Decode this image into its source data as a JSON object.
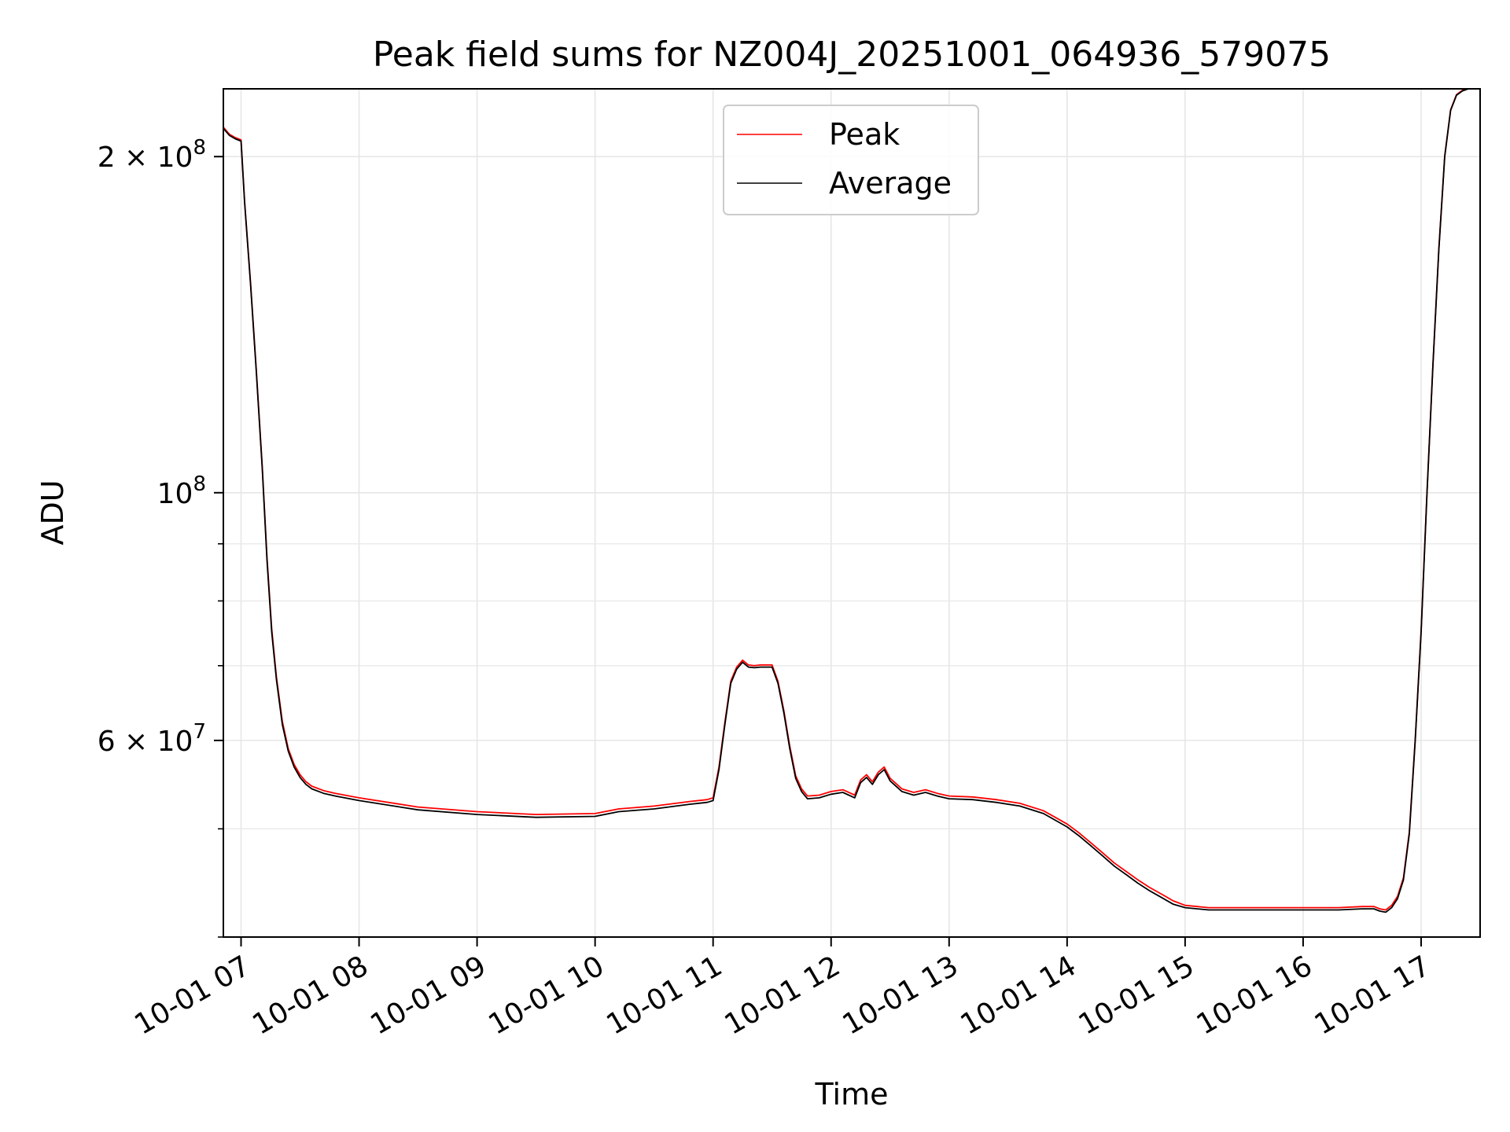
{
  "chart_data": {
    "type": "line",
    "title": "Peak field sums for NZ004J_20251001_064936_579075",
    "xlabel": "Time",
    "ylabel": "ADU",
    "y_scale": "log",
    "xlim_hours": [
      6.85,
      17.5
    ],
    "ylim": [
      40000000,
      230000000
    ],
    "x_ticks": [
      {
        "hour": 7,
        "label": "10-01 07"
      },
      {
        "hour": 8,
        "label": "10-01 08"
      },
      {
        "hour": 9,
        "label": "10-01 09"
      },
      {
        "hour": 10,
        "label": "10-01 10"
      },
      {
        "hour": 11,
        "label": "10-01 11"
      },
      {
        "hour": 12,
        "label": "10-01 12"
      },
      {
        "hour": 13,
        "label": "10-01 13"
      },
      {
        "hour": 14,
        "label": "10-01 14"
      },
      {
        "hour": 15,
        "label": "10-01 15"
      },
      {
        "hour": 16,
        "label": "10-01 16"
      },
      {
        "hour": 17,
        "label": "10-01 17"
      }
    ],
    "y_major_ticks": [
      {
        "value": 100000000,
        "base": "10",
        "exp": "8"
      },
      {
        "value": 200000000,
        "base": "2 × 10",
        "exp": "8"
      },
      {
        "value": 60000000,
        "base": "6 × 10",
        "exp": "7"
      }
    ],
    "y_minor_ticks": [
      40000000,
      50000000,
      70000000,
      80000000,
      90000000
    ],
    "legend": {
      "position": "upper center",
      "entries": [
        {
          "name": "Peak",
          "color": "#ff0000"
        },
        {
          "name": "Average",
          "color": "#000000"
        }
      ]
    },
    "series": [
      {
        "name": "Average",
        "color": "#000000",
        "x_hours": [
          6.85,
          6.9,
          6.95,
          7.0,
          7.03,
          7.08,
          7.13,
          7.18,
          7.22,
          7.26,
          7.3,
          7.35,
          7.4,
          7.45,
          7.5,
          7.55,
          7.6,
          7.7,
          7.8,
          8.0,
          8.5,
          9.0,
          9.5,
          10.0,
          10.2,
          10.5,
          10.8,
          10.95,
          11.0,
          11.05,
          11.1,
          11.15,
          11.2,
          11.25,
          11.3,
          11.35,
          11.4,
          11.5,
          11.55,
          11.6,
          11.65,
          11.7,
          11.75,
          11.8,
          11.9,
          12.0,
          12.1,
          12.2,
          12.25,
          12.3,
          12.35,
          12.4,
          12.45,
          12.5,
          12.6,
          12.7,
          12.8,
          12.9,
          13.0,
          13.2,
          13.4,
          13.6,
          13.8,
          14.0,
          14.1,
          14.2,
          14.3,
          14.4,
          14.5,
          14.6,
          14.7,
          14.8,
          14.9,
          15.0,
          15.2,
          15.5,
          15.8,
          16.0,
          16.3,
          16.5,
          16.6,
          16.65,
          16.7,
          16.75,
          16.8,
          16.85,
          16.9,
          16.95,
          17.0,
          17.05,
          17.1,
          17.15,
          17.2,
          17.25,
          17.3,
          17.35,
          17.4,
          17.45,
          17.5
        ],
        "values": [
          212000000,
          209000000,
          207500000,
          206500000,
          182000000,
          154000000,
          128000000,
          105000000,
          87000000,
          75000000,
          68000000,
          62000000,
          58700000,
          56800000,
          55600000,
          54800000,
          54300000,
          53800000,
          53500000,
          53000000,
          52000000,
          51500000,
          51200000,
          51300000,
          51800000,
          52100000,
          52600000,
          52800000,
          53000000,
          56500000,
          62000000,
          67500000,
          69500000,
          70500000,
          69800000,
          69700000,
          69800000,
          69800000,
          67500000,
          63500000,
          59000000,
          55500000,
          54000000,
          53200000,
          53300000,
          53700000,
          53900000,
          53300000,
          55000000,
          55600000,
          54800000,
          55900000,
          56500000,
          55200000,
          54000000,
          53600000,
          53900000,
          53500000,
          53200000,
          53100000,
          52800000,
          52400000,
          51600000,
          50200000,
          49300000,
          48300000,
          47300000,
          46300000,
          45500000,
          44700000,
          44000000,
          43400000,
          42800000,
          42500000,
          42300000,
          42300000,
          42300000,
          42300000,
          42300000,
          42400000,
          42400000,
          42200000,
          42100000,
          42500000,
          43300000,
          45000000,
          49500000,
          60000000,
          75000000,
          100000000,
          130000000,
          165000000,
          200000000,
          220000000,
          227000000,
          229000000,
          230000000,
          230000000,
          230000000
        ]
      },
      {
        "name": "Peak",
        "color": "#ff0000",
        "x_hours": [
          6.85,
          6.9,
          6.95,
          7.0,
          7.03,
          7.08,
          7.13,
          7.18,
          7.22,
          7.26,
          7.3,
          7.35,
          7.4,
          7.45,
          7.5,
          7.55,
          7.6,
          7.7,
          7.8,
          8.0,
          8.5,
          9.0,
          9.5,
          10.0,
          10.2,
          10.5,
          10.8,
          10.95,
          11.0,
          11.05,
          11.1,
          11.15,
          11.2,
          11.25,
          11.3,
          11.35,
          11.4,
          11.5,
          11.55,
          11.6,
          11.65,
          11.7,
          11.75,
          11.8,
          11.9,
          12.0,
          12.1,
          12.2,
          12.25,
          12.3,
          12.35,
          12.4,
          12.45,
          12.5,
          12.6,
          12.7,
          12.8,
          12.9,
          13.0,
          13.2,
          13.4,
          13.6,
          13.8,
          14.0,
          14.1,
          14.2,
          14.3,
          14.4,
          14.5,
          14.6,
          14.7,
          14.8,
          14.9,
          15.0,
          15.2,
          15.5,
          15.8,
          16.0,
          16.3,
          16.5,
          16.6,
          16.65,
          16.7,
          16.75,
          16.8,
          16.85,
          16.9,
          16.95,
          17.0,
          17.05,
          17.1,
          17.15,
          17.2,
          17.25,
          17.3,
          17.35,
          17.4,
          17.45,
          17.5
        ],
        "values": [
          212500000,
          209500000,
          208000000,
          207000000,
          182500000,
          154500000,
          128500000,
          105500000,
          87500000,
          75500000,
          68400000,
          62400000,
          59000000,
          57100000,
          55900000,
          55100000,
          54600000,
          54100000,
          53800000,
          53300000,
          52300000,
          51800000,
          51500000,
          51600000,
          52100000,
          52400000,
          52900000,
          53100000,
          53300000,
          56800000,
          62300000,
          67800000,
          69800000,
          70800000,
          70100000,
          70000000,
          70100000,
          70100000,
          67800000,
          63800000,
          59300000,
          55800000,
          54300000,
          53500000,
          53600000,
          54000000,
          54200000,
          53600000,
          55300000,
          55900000,
          55100000,
          56200000,
          56800000,
          55500000,
          54300000,
          53900000,
          54200000,
          53800000,
          53500000,
          53400000,
          53100000,
          52700000,
          51900000,
          50500000,
          49600000,
          48600000,
          47600000,
          46600000,
          45800000,
          45000000,
          44300000,
          43700000,
          43100000,
          42700000,
          42500000,
          42500000,
          42500000,
          42500000,
          42500000,
          42600000,
          42600000,
          42400000,
          42300000,
          42700000,
          43500000,
          45200000,
          49700000,
          60200000,
          75300000,
          100300000,
          130300000,
          165300000,
          200300000,
          220300000,
          227300000,
          229300000,
          230000000,
          230000000,
          230000000
        ]
      }
    ]
  }
}
